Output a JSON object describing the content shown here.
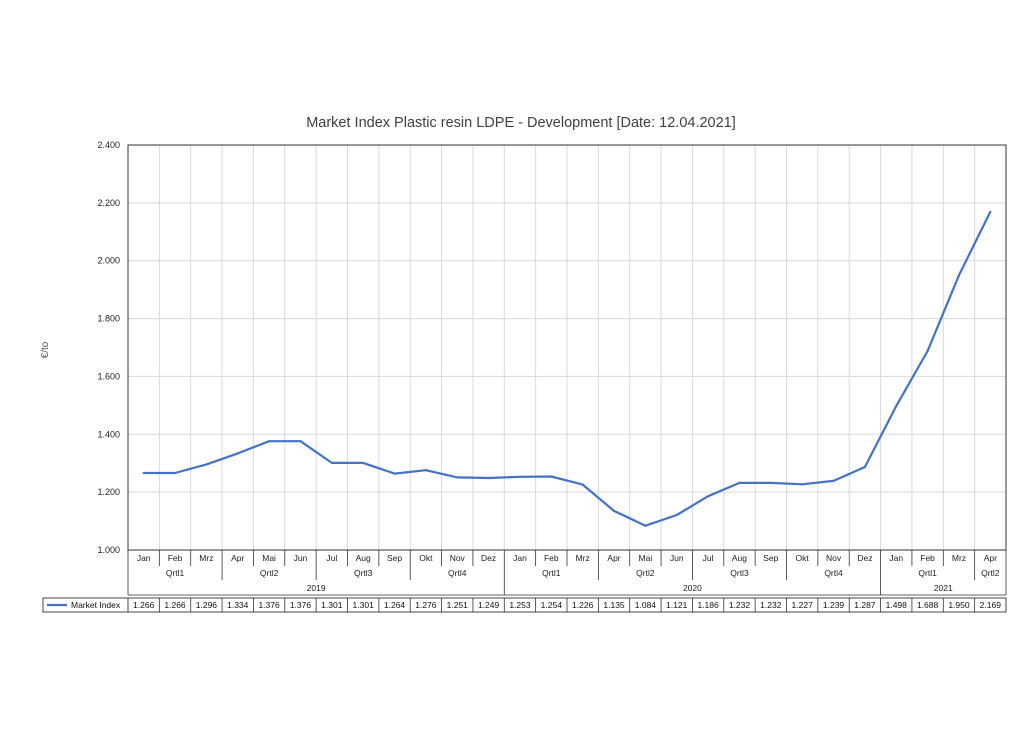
{
  "chart_data": {
    "type": "line",
    "title": "Market Index Plastic resin LDPE - Development [Date: 12.04.2021]",
    "xlabel": "",
    "ylabel": "€/to",
    "ylim": [
      1.0,
      2.4
    ],
    "yticks": [
      "1.000",
      "1.200",
      "1.400",
      "1.600",
      "1.800",
      "2.000",
      "2.200",
      "2.400"
    ],
    "grid": true,
    "categories": [
      "Jan",
      "Feb",
      "Mrz",
      "Apr",
      "Mai",
      "Jun",
      "Jul",
      "Aug",
      "Sep",
      "Okt",
      "Nov",
      "Dez",
      "Jan",
      "Feb",
      "Mrz",
      "Apr",
      "Mai",
      "Jun",
      "Jul",
      "Aug",
      "Sep",
      "Okt",
      "Nov",
      "Dez",
      "Jan",
      "Feb",
      "Mrz",
      "Apr"
    ],
    "quarters": [
      {
        "label": "Qrtl1",
        "span": 3
      },
      {
        "label": "Qrtl2",
        "span": 3
      },
      {
        "label": "Qrtl3",
        "span": 3
      },
      {
        "label": "Qrtl4",
        "span": 3
      },
      {
        "label": "Qrtl1",
        "span": 3
      },
      {
        "label": "Qrtl2",
        "span": 3
      },
      {
        "label": "Qrtl3",
        "span": 3
      },
      {
        "label": "Qrtl4",
        "span": 3
      },
      {
        "label": "Qrtl1",
        "span": 3
      },
      {
        "label": "Qrtl2",
        "span": 1
      }
    ],
    "years": [
      {
        "label": "2019",
        "span": 12
      },
      {
        "label": "2020",
        "span": 12
      },
      {
        "label": "2021",
        "span": 4
      }
    ],
    "series": [
      {
        "name": "Market Index",
        "color": "#4472C4",
        "values": [
          1.266,
          1.266,
          1.296,
          1.334,
          1.376,
          1.376,
          1.301,
          1.301,
          1.264,
          1.276,
          1.251,
          1.249,
          1.253,
          1.254,
          1.226,
          1.135,
          1.084,
          1.121,
          1.186,
          1.232,
          1.232,
          1.227,
          1.239,
          1.287,
          1.498,
          1.688,
          1.95,
          2.169
        ],
        "labels": [
          "1.266",
          "1.266",
          "1.296",
          "1.334",
          "1.376",
          "1.376",
          "1.301",
          "1.301",
          "1.264",
          "1.276",
          "1.251",
          "1.249",
          "1.253",
          "1.254",
          "1.226",
          "1.135",
          "1.084",
          "1.121",
          "1.186",
          "1.232",
          "1.232",
          "1.227",
          "1.239",
          "1.287",
          "1.498",
          "1.688",
          "1.950",
          "2.169"
        ]
      }
    ]
  }
}
